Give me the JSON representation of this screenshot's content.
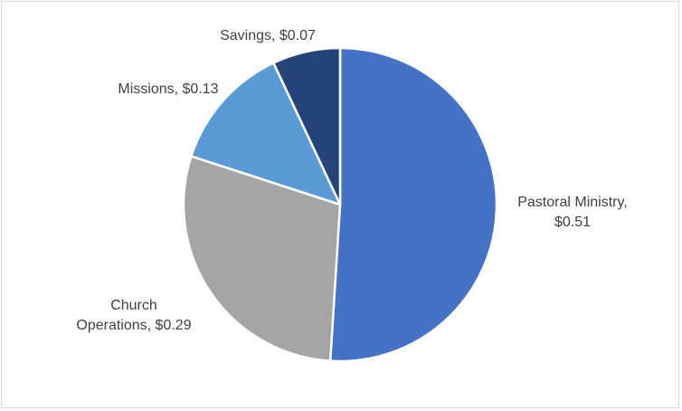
{
  "chart_data": {
    "type": "pie",
    "title": "",
    "start_angle_deg": 0,
    "direction": "clockwise",
    "legend": "none",
    "slices": [
      {
        "name": "Pastoral Ministry",
        "value": 0.51,
        "label_lines": [
          "Pastoral Ministry,",
          "$0.51"
        ],
        "color": "#4472c4",
        "label_side": "right"
      },
      {
        "name": "Church Operations",
        "value": 0.29,
        "label_lines": [
          "Church",
          "Operations, $0.29"
        ],
        "color": "#a5a5a5",
        "label_side": "lower-left"
      },
      {
        "name": "Missions",
        "value": 0.13,
        "label_lines": [
          "Missions, $0.13"
        ],
        "color": "#5b9bd5",
        "label_side": "upper-left"
      },
      {
        "name": "Savings",
        "value": 0.07,
        "label_lines": [
          "Savings, $0.07"
        ],
        "color": "#264478",
        "label_side": "top"
      }
    ]
  }
}
